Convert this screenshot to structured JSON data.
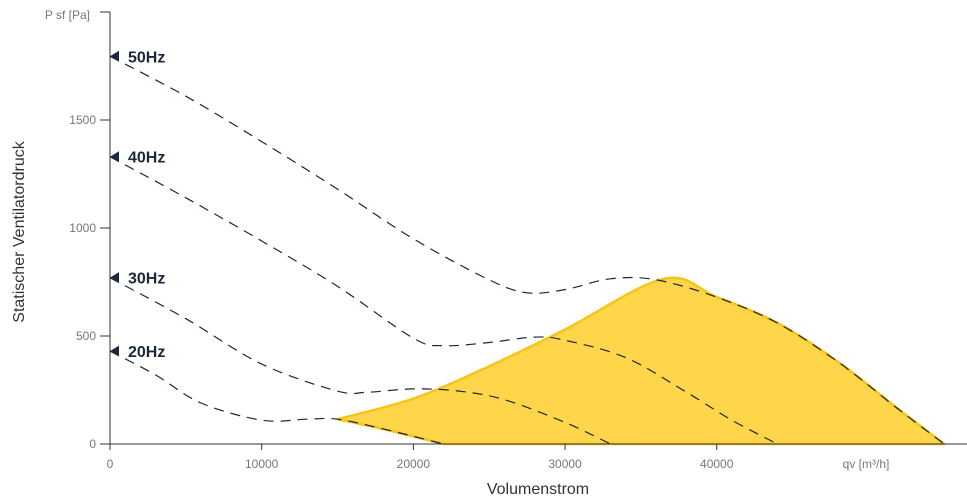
{
  "chart_data": {
    "type": "line",
    "xlabel": "Volumenstrom",
    "ylabel": "Statischer Ventilatordruck",
    "x_unit_label": "qv [m³/h]",
    "y_unit_label": "P sf [Pa]",
    "xlim": [
      0,
      56500
    ],
    "ylim": [
      0,
      2000
    ],
    "x_ticks": [
      0,
      10000,
      20000,
      30000,
      40000
    ],
    "y_ticks": [
      0,
      500,
      1000,
      1500
    ],
    "grid": false,
    "series": [
      {
        "name": "50Hz",
        "color": "#1c2739",
        "style": "dashed",
        "x": [
          0,
          5000,
          10000,
          15000,
          20000,
          25000,
          27500,
          30000,
          33000,
          36000,
          40000,
          44000,
          48000,
          52000,
          55000
        ],
        "y": [
          1795,
          1610,
          1400,
          1180,
          950,
          760,
          700,
          715,
          765,
          760,
          680,
          560,
          380,
          160,
          0
        ]
      },
      {
        "name": "40Hz",
        "color": "#1c2739",
        "style": "dashed",
        "x": [
          0,
          5000,
          10000,
          15000,
          20000,
          22000,
          25000,
          28000,
          30000,
          34000,
          38000,
          41000,
          44000
        ],
        "y": [
          1330,
          1140,
          940,
          730,
          490,
          455,
          470,
          495,
          480,
          400,
          240,
          110,
          0
        ]
      },
      {
        "name": "30Hz",
        "color": "#1c2739",
        "style": "dashed",
        "x": [
          0,
          5000,
          10000,
          15000,
          17000,
          20000,
          23000,
          26000,
          30000,
          33000
        ],
        "y": [
          770,
          580,
          370,
          245,
          240,
          255,
          245,
          205,
          100,
          0
        ]
      },
      {
        "name": "20Hz",
        "color": "#1c2739",
        "style": "dashed",
        "x": [
          0,
          3000,
          6000,
          10000,
          13000,
          15000,
          18000,
          22000
        ],
        "y": [
          430,
          320,
          190,
          110,
          115,
          115,
          70,
          0
        ]
      }
    ],
    "operating_area": {
      "color": "#ffd54a",
      "x": [
        15000,
        20000,
        25000,
        30000,
        36500,
        40000,
        44000,
        48000,
        52000,
        55000,
        22000,
        18000,
        15000
      ],
      "y": [
        115,
        210,
        360,
        530,
        765,
        680,
        560,
        380,
        160,
        0,
        0,
        70,
        115
      ]
    }
  }
}
